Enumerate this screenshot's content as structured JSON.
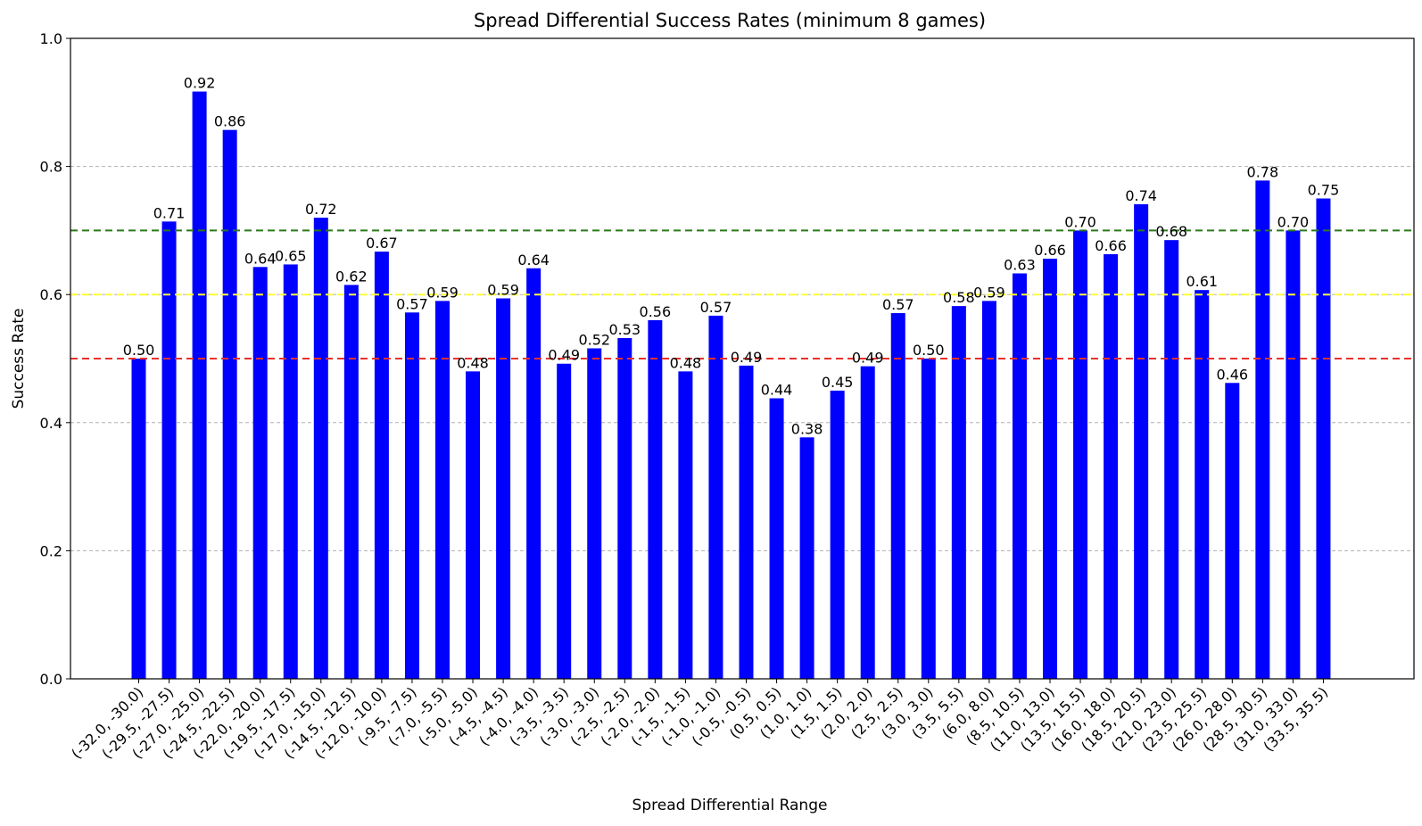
{
  "chart_data": {
    "type": "bar",
    "title": "Spread Differential Success Rates (minimum 8 games)",
    "xlabel": "Spread Differential Range",
    "ylabel": "Success Rate",
    "ylim": [
      0,
      1.0
    ],
    "yticks": [
      "0.0",
      "0.2",
      "0.4",
      "0.6",
      "0.8",
      "1.0"
    ],
    "grid": "y-dashed",
    "bar_color": "#0000ff",
    "categories": [
      "(-32.0, -30.0)",
      "(-29.5, -27.5)",
      "(-27.0, -25.0)",
      "(-24.5, -22.5)",
      "(-22.0, -20.0)",
      "(-19.5, -17.5)",
      "(-17.0, -15.0)",
      "(-14.5, -12.5)",
      "(-12.0, -10.0)",
      "(-9.5, -7.5)",
      "(-7.0, -5.5)",
      "(-5.0, -5.0)",
      "(-4.5, -4.5)",
      "(-4.0, -4.0)",
      "(-3.5, -3.5)",
      "(-3.0, -3.0)",
      "(-2.5, -2.5)",
      "(-2.0, -2.0)",
      "(-1.5, -1.5)",
      "(-1.0, -1.0)",
      "(-0.5, -0.5)",
      "(0.5, 0.5)",
      "(1.0, 1.0)",
      "(1.5, 1.5)",
      "(2.0, 2.0)",
      "(2.5, 2.5)",
      "(3.0, 3.0)",
      "(3.5, 5.5)",
      "(6.0, 8.0)",
      "(8.5, 10.5)",
      "(11.0, 13.0)",
      "(13.5, 15.5)",
      "(16.0, 18.0)",
      "(18.5, 20.5)",
      "(21.0, 23.0)",
      "(23.5, 25.5)",
      "(26.0, 28.0)",
      "(28.5, 30.5)",
      "(31.0, 33.0)",
      "(33.5, 35.5)"
    ],
    "values": [
      0.5,
      0.714,
      0.917,
      0.857,
      0.643,
      0.647,
      0.72,
      0.615,
      0.667,
      0.572,
      0.59,
      0.48,
      0.594,
      0.641,
      0.492,
      0.516,
      0.532,
      0.56,
      0.48,
      0.567,
      0.489,
      0.438,
      0.377,
      0.45,
      0.488,
      0.571,
      0.5,
      0.582,
      0.59,
      0.633,
      0.656,
      0.7,
      0.663,
      0.741,
      0.685,
      0.607,
      0.462,
      0.778,
      0.7,
      0.75
    ],
    "labels": [
      "0.50",
      "0.71",
      "0.92",
      "0.86",
      "0.64",
      "0.65",
      "0.72",
      "0.62",
      "0.67",
      "0.57",
      "0.59",
      "0.48",
      "0.59",
      "0.64",
      "0.49",
      "0.52",
      "0.53",
      "0.56",
      "0.48",
      "0.57",
      "0.49",
      "0.44",
      "0.38",
      "0.45",
      "0.49",
      "0.57",
      "0.50",
      "0.58",
      "0.59",
      "0.63",
      "0.66",
      "0.70",
      "0.66",
      "0.74",
      "0.68",
      "0.61",
      "0.46",
      "0.78",
      "0.70",
      "0.75"
    ],
    "reference_lines": [
      {
        "value": 0.5,
        "color": "#e8322c"
      },
      {
        "value": 0.6,
        "color": "#ffff33"
      },
      {
        "value": 0.7,
        "color": "#2a7a1a"
      }
    ]
  }
}
